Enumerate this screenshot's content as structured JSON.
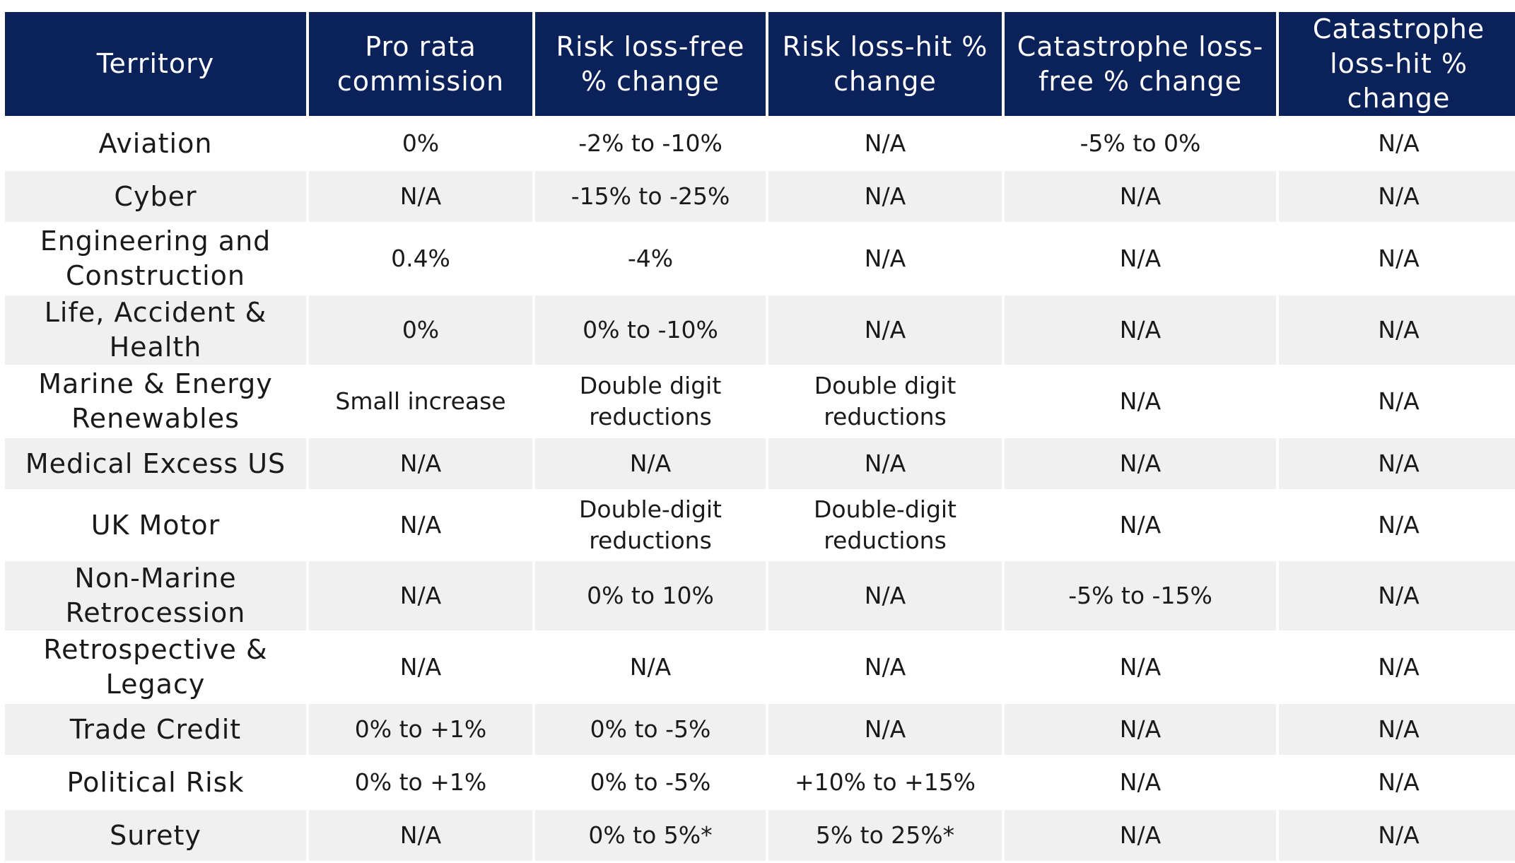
{
  "table": {
    "headers": [
      "Territory",
      "Pro rata commission",
      "Risk loss-free % change",
      "Risk loss-hit % change",
      "Catastrophe loss-free % change",
      "Catastrophe loss-hit % change"
    ],
    "rows": [
      [
        "Aviation",
        "0%",
        "-2% to -10%",
        "N/A",
        "-5% to 0%",
        "N/A"
      ],
      [
        "Cyber",
        "N/A",
        "-15% to -25%",
        "N/A",
        "N/A",
        "N/A"
      ],
      [
        "Engineering and Construction",
        "0.4%",
        "-4%",
        "N/A",
        "N/A",
        "N/A"
      ],
      [
        "Life, Accident & Health",
        "0%",
        "0% to -10%",
        "N/A",
        "N/A",
        "N/A"
      ],
      [
        "Marine & Energy Renewables",
        "Small increase",
        "Double digit reductions",
        "Double digit reductions",
        "N/A",
        "N/A"
      ],
      [
        "Medical Excess US",
        "N/A",
        "N/A",
        "N/A",
        "N/A",
        "N/A"
      ],
      [
        "UK Motor",
        "N/A",
        "Double-digit reductions",
        "Double-digit reductions",
        "N/A",
        "N/A"
      ],
      [
        "Non-Marine Retrocession",
        "N/A",
        "0% to 10%",
        "N/A",
        "-5% to -15%",
        "N/A"
      ],
      [
        "Retrospective & Legacy",
        "N/A",
        "N/A",
        "N/A",
        "N/A",
        "N/A"
      ],
      [
        "Trade Credit",
        "0% to +1%",
        "0% to -5%",
        "N/A",
        "N/A",
        "N/A"
      ],
      [
        "Political Risk",
        "0% to +1%",
        "0% to -5%",
        "+10% to +15%",
        "N/A",
        "N/A"
      ],
      [
        "Surety",
        "N/A",
        "0% to 5%*",
        "5% to 25%*",
        "N/A",
        "N/A"
      ]
    ]
  },
  "colors": {
    "header_bg": "#0a2159",
    "header_text": "#ffffff",
    "row_alt_bg": "#f0f0f0",
    "row_bg": "#ffffff"
  }
}
